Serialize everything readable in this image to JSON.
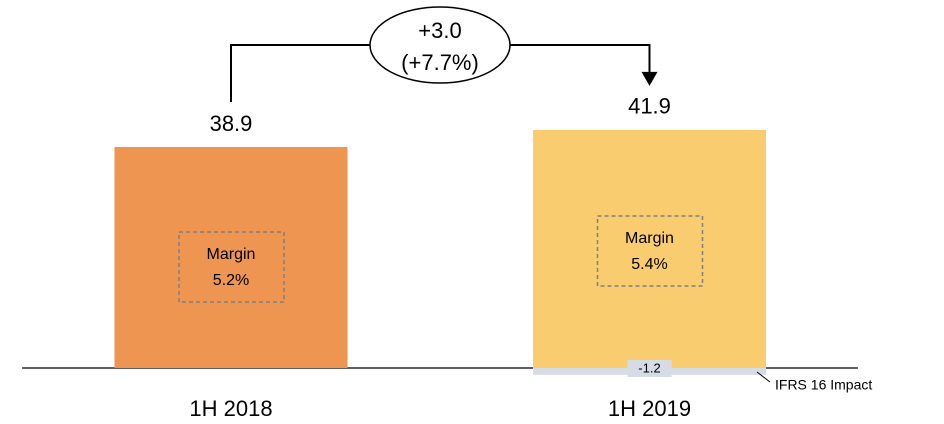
{
  "chart_data": {
    "type": "bar",
    "categories": [
      "1H 2018",
      "1H 2019"
    ],
    "values": [
      38.9,
      41.9
    ],
    "colors": [
      "#ee9552",
      "#f9cd6f"
    ],
    "margin_labels": [
      [
        "Margin",
        "5.2%"
      ],
      [
        "Margin",
        "5.4%"
      ]
    ],
    "change_labels": [
      "+3.0",
      "(+7.7%)"
    ],
    "adjustment": {
      "name": "IFRS 16 Impact",
      "values": [
        null,
        -1.2
      ],
      "color": "#d6dce5"
    },
    "ylim": [
      0,
      44
    ]
  }
}
